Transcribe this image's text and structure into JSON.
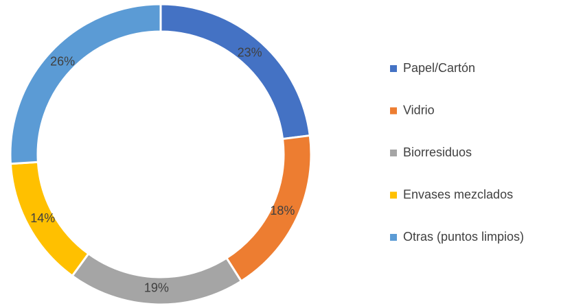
{
  "chart_data": {
    "type": "donut",
    "categories": [
      "Papel/Cartón",
      "Vidrio",
      "Biorresiduos",
      "Envases mezclados",
      "Otras (puntos limpios)"
    ],
    "values": [
      23,
      18,
      19,
      14,
      26
    ],
    "value_labels": [
      "23%",
      "18%",
      "19%",
      "14%",
      "26%"
    ],
    "colors": [
      "#4472c4",
      "#ed7d31",
      "#a5a5a5",
      "#ffc000",
      "#5b9bd5"
    ],
    "legend": "right"
  }
}
